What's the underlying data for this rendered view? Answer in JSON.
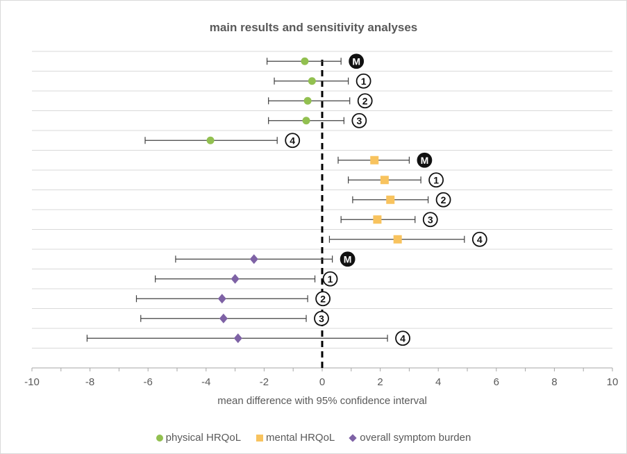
{
  "chart_data": {
    "type": "scatter",
    "title": "main results  and sensitivity  analyses",
    "xlabel": "mean difference with 95% confidence interval",
    "ylabel": "",
    "xlim": [
      -10,
      10
    ],
    "xticks": [
      -10,
      -8,
      -6,
      -4,
      -2,
      0,
      2,
      4,
      6,
      8,
      10
    ],
    "reference_line": 0,
    "grid": "horizontal",
    "legend_position": "bottom",
    "series": [
      {
        "name": "physical HRQoL",
        "marker": "circle",
        "color": "#92c050",
        "points": [
          {
            "label": "M",
            "mean": -0.6,
            "lower": -1.9,
            "upper": 0.65
          },
          {
            "label": "1",
            "mean": -0.35,
            "lower": -1.65,
            "upper": 0.9
          },
          {
            "label": "2",
            "mean": -0.5,
            "lower": -1.85,
            "upper": 0.95
          },
          {
            "label": "3",
            "mean": -0.55,
            "lower": -1.85,
            "upper": 0.75
          },
          {
            "label": "4",
            "mean": -3.85,
            "lower": -6.1,
            "upper": -1.55
          }
        ]
      },
      {
        "name": "mental HRQoL",
        "marker": "square",
        "color": "#f8c35e",
        "points": [
          {
            "label": "M",
            "mean": 1.8,
            "lower": 0.55,
            "upper": 3.0
          },
          {
            "label": "1",
            "mean": 2.15,
            "lower": 0.9,
            "upper": 3.4
          },
          {
            "label": "2",
            "mean": 2.35,
            "lower": 1.05,
            "upper": 3.65
          },
          {
            "label": "3",
            "mean": 1.9,
            "lower": 0.65,
            "upper": 3.2
          },
          {
            "label": "4",
            "mean": 2.6,
            "lower": 0.25,
            "upper": 4.9
          }
        ]
      },
      {
        "name": "overall symptom burden",
        "marker": "diamond",
        "color": "#7e62a5",
        "points": [
          {
            "label": "M",
            "mean": -2.35,
            "lower": -5.05,
            "upper": 0.35
          },
          {
            "label": "1",
            "mean": -3.0,
            "lower": -5.75,
            "upper": -0.25
          },
          {
            "label": "2",
            "mean": -3.45,
            "lower": -6.4,
            "upper": -0.5
          },
          {
            "label": "3",
            "mean": -3.4,
            "lower": -6.25,
            "upper": -0.55
          },
          {
            "label": "4",
            "mean": -2.9,
            "lower": -8.1,
            "upper": 2.25
          }
        ]
      }
    ]
  }
}
